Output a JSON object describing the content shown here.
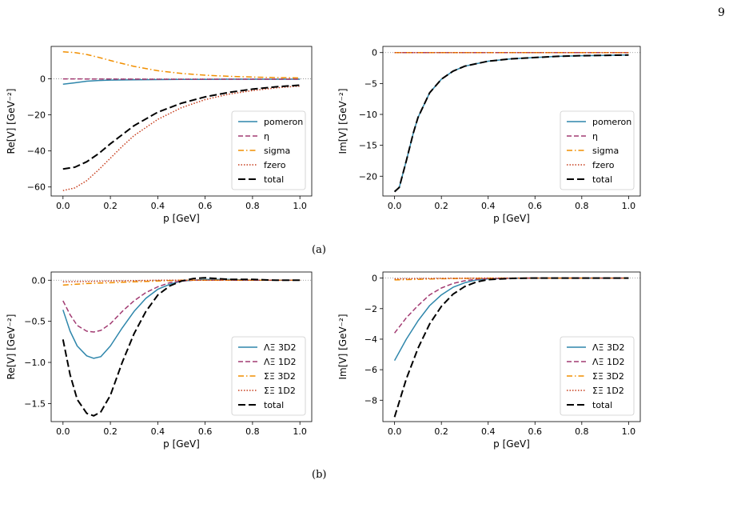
{
  "page": {
    "number": "9"
  },
  "captions": {
    "a": "(a)",
    "b": "(b)"
  },
  "colors": {
    "blue": "#2E86AB",
    "magenta": "#A23B72",
    "orange": "#F18F01",
    "red": "#C73E1D",
    "black": "#000000"
  },
  "chart_data": [
    {
      "id": "a-re",
      "type": "line",
      "xlabel": "p [GeV]",
      "ylabel": "Re[V] [GeV⁻²]",
      "xlim": [
        -0.05,
        1.05
      ],
      "ylim": [
        -65,
        18
      ],
      "xticks": [
        0.0,
        0.2,
        0.4,
        0.6,
        0.8,
        1.0
      ],
      "xtick_labels": [
        "0.0",
        "0.2",
        "0.4",
        "0.6",
        "0.8",
        "1.0"
      ],
      "yticks": [
        0,
        -20,
        -40,
        -60
      ],
      "ytick_labels": [
        "0",
        "−20",
        "−40",
        "−60"
      ],
      "zero_line": true,
      "legend_position": "lower-right",
      "series": [
        {
          "name": "pomeron",
          "style": "solid",
          "color": "#2E86AB",
          "x": [
            0.0,
            0.05,
            0.1,
            0.15,
            0.2,
            0.3,
            0.4,
            0.5,
            0.6,
            0.7,
            0.8,
            0.9,
            1.0
          ],
          "y": [
            -3.0,
            -2.2,
            -1.3,
            -0.9,
            -0.7,
            -0.5,
            -0.4,
            -0.3,
            -0.3,
            -0.2,
            -0.2,
            -0.2,
            -0.2
          ]
        },
        {
          "name": "η",
          "style": "dashed",
          "color": "#A23B72",
          "x": [
            0.0,
            0.2,
            0.4,
            0.6,
            0.8,
            1.0
          ],
          "y": [
            0.0,
            -0.1,
            -0.2,
            -0.2,
            -0.2,
            -0.2
          ]
        },
        {
          "name": "sigma",
          "style": "dashdot",
          "color": "#F18F01",
          "x": [
            0.0,
            0.05,
            0.1,
            0.15,
            0.2,
            0.25,
            0.3,
            0.4,
            0.5,
            0.6,
            0.7,
            0.8,
            0.9,
            1.0
          ],
          "y": [
            15.0,
            14.6,
            13.5,
            11.9,
            10.2,
            8.5,
            6.9,
            4.5,
            3.0,
            2.0,
            1.4,
            1.0,
            0.7,
            0.5
          ]
        },
        {
          "name": "fzero",
          "style": "dotted",
          "color": "#C73E1D",
          "x": [
            0.0,
            0.05,
            0.1,
            0.15,
            0.2,
            0.25,
            0.3,
            0.4,
            0.5,
            0.6,
            0.7,
            0.8,
            0.9,
            1.0
          ],
          "y": [
            -62.0,
            -60.5,
            -56.5,
            -50.5,
            -44.0,
            -37.5,
            -31.5,
            -22.5,
            -16.0,
            -11.5,
            -8.5,
            -6.5,
            -5.0,
            -4.0
          ]
        },
        {
          "name": "total",
          "style": "longdash",
          "color": "#000000",
          "x": [
            0.0,
            0.05,
            0.1,
            0.15,
            0.2,
            0.25,
            0.3,
            0.4,
            0.5,
            0.6,
            0.7,
            0.8,
            0.9,
            1.0
          ],
          "y": [
            -50.0,
            -49.0,
            -46.0,
            -41.5,
            -36.0,
            -31.0,
            -26.0,
            -18.5,
            -13.5,
            -10.0,
            -7.5,
            -5.7,
            -4.4,
            -3.5
          ]
        }
      ]
    },
    {
      "id": "a-im",
      "type": "line",
      "xlabel": "p [GeV]",
      "ylabel": "Im[V] [GeV⁻²]",
      "xlim": [
        -0.05,
        1.05
      ],
      "ylim": [
        -23.2,
        1.0
      ],
      "xticks": [
        0.0,
        0.2,
        0.4,
        0.6,
        0.8,
        1.0
      ],
      "xtick_labels": [
        "0.0",
        "0.2",
        "0.4",
        "0.6",
        "0.8",
        "1.0"
      ],
      "yticks": [
        0,
        -5,
        -10,
        -15,
        -20
      ],
      "ytick_labels": [
        "0",
        "−5",
        "−10",
        "−15",
        "−20"
      ],
      "zero_line": true,
      "legend_position": "lower-right",
      "series": [
        {
          "name": "pomeron",
          "style": "solid",
          "color": "#2E86AB",
          "x": [
            0.0,
            0.02,
            0.05,
            0.08,
            0.1,
            0.15,
            0.2,
            0.25,
            0.3,
            0.4,
            0.5,
            0.6,
            0.7,
            0.8,
            0.9,
            1.0
          ],
          "y": [
            -22.5,
            -21.8,
            -17.5,
            -13.0,
            -10.5,
            -6.5,
            -4.3,
            -3.0,
            -2.2,
            -1.4,
            -1.0,
            -0.8,
            -0.6,
            -0.5,
            -0.45,
            -0.4
          ]
        },
        {
          "name": "η",
          "style": "dashed",
          "color": "#A23B72",
          "x": [
            0.0,
            0.5,
            1.0
          ],
          "y": [
            0.0,
            0.0,
            0.0
          ]
        },
        {
          "name": "sigma",
          "style": "dashdot",
          "color": "#F18F01",
          "x": [
            0.0,
            0.5,
            1.0
          ],
          "y": [
            0.0,
            0.0,
            0.0
          ]
        },
        {
          "name": "fzero",
          "style": "dotted",
          "color": "#C73E1D",
          "x": [
            0.0,
            0.5,
            1.0
          ],
          "y": [
            0.0,
            0.0,
            0.0
          ]
        },
        {
          "name": "total",
          "style": "longdash",
          "color": "#000000",
          "x": [
            0.0,
            0.02,
            0.05,
            0.08,
            0.1,
            0.15,
            0.2,
            0.25,
            0.3,
            0.4,
            0.5,
            0.6,
            0.7,
            0.8,
            0.9,
            1.0
          ],
          "y": [
            -22.5,
            -21.8,
            -17.5,
            -13.0,
            -10.5,
            -6.5,
            -4.3,
            -3.0,
            -2.2,
            -1.4,
            -1.0,
            -0.8,
            -0.6,
            -0.5,
            -0.45,
            -0.4
          ]
        }
      ]
    },
    {
      "id": "b-re",
      "type": "line",
      "xlabel": "p [GeV]",
      "ylabel": "Re[V] [GeV⁻²]",
      "xlim": [
        -0.05,
        1.05
      ],
      "ylim": [
        -1.72,
        0.1
      ],
      "xticks": [
        0.0,
        0.2,
        0.4,
        0.6,
        0.8,
        1.0
      ],
      "xtick_labels": [
        "0.0",
        "0.2",
        "0.4",
        "0.6",
        "0.8",
        "1.0"
      ],
      "yticks": [
        0.0,
        -0.5,
        -1.0,
        -1.5
      ],
      "ytick_labels": [
        "0.0",
        "−0.5",
        "−1.0",
        "−1.5"
      ],
      "zero_line": true,
      "legend_position": "lower-right",
      "series": [
        {
          "name": "ΛΞ 3D2",
          "style": "solid",
          "color": "#2E86AB",
          "x": [
            0.0,
            0.03,
            0.06,
            0.1,
            0.13,
            0.16,
            0.2,
            0.25,
            0.3,
            0.35,
            0.4,
            0.45,
            0.5,
            0.55,
            0.6,
            0.7,
            0.8,
            0.9,
            1.0
          ],
          "y": [
            -0.36,
            -0.62,
            -0.8,
            -0.92,
            -0.95,
            -0.93,
            -0.8,
            -0.58,
            -0.38,
            -0.22,
            -0.11,
            -0.05,
            -0.01,
            0.0,
            0.01,
            0.01,
            0.0,
            0.0,
            0.0
          ]
        },
        {
          "name": "ΛΞ 1D2",
          "style": "dashed",
          "color": "#A23B72",
          "x": [
            0.0,
            0.03,
            0.06,
            0.1,
            0.13,
            0.16,
            0.2,
            0.25,
            0.3,
            0.35,
            0.4,
            0.45,
            0.5,
            0.55,
            0.6,
            0.7,
            0.8,
            0.9,
            1.0
          ],
          "y": [
            -0.25,
            -0.42,
            -0.55,
            -0.62,
            -0.63,
            -0.61,
            -0.53,
            -0.38,
            -0.25,
            -0.15,
            -0.08,
            -0.03,
            -0.01,
            0.0,
            0.0,
            0.0,
            0.0,
            0.0,
            0.0
          ]
        },
        {
          "name": "ΣΞ 3D2",
          "style": "dashdot",
          "color": "#F18F01",
          "x": [
            0.0,
            0.1,
            0.2,
            0.3,
            0.4,
            0.5,
            0.6,
            0.7,
            0.8,
            0.9,
            1.0
          ],
          "y": [
            -0.06,
            -0.04,
            -0.03,
            -0.02,
            -0.01,
            0.0,
            0.0,
            0.0,
            0.0,
            0.0,
            0.0
          ]
        },
        {
          "name": "ΣΞ 1D2",
          "style": "dotted",
          "color": "#C73E1D",
          "x": [
            0.0,
            0.1,
            0.2,
            0.3,
            0.4,
            0.5,
            0.6,
            0.7,
            0.8,
            0.9,
            1.0
          ],
          "y": [
            -0.02,
            -0.015,
            -0.01,
            -0.005,
            0.0,
            0.0,
            0.0,
            0.0,
            0.0,
            0.0,
            0.0
          ]
        },
        {
          "name": "total",
          "style": "longdash",
          "color": "#000000",
          "x": [
            0.0,
            0.03,
            0.06,
            0.1,
            0.13,
            0.16,
            0.2,
            0.25,
            0.3,
            0.35,
            0.4,
            0.45,
            0.5,
            0.55,
            0.6,
            0.65,
            0.7,
            0.8,
            0.9,
            1.0
          ],
          "y": [
            -0.72,
            -1.15,
            -1.45,
            -1.62,
            -1.65,
            -1.6,
            -1.4,
            -1.0,
            -0.65,
            -0.38,
            -0.18,
            -0.07,
            -0.01,
            0.02,
            0.03,
            0.02,
            0.01,
            0.01,
            0.0,
            0.0
          ]
        }
      ]
    },
    {
      "id": "b-im",
      "type": "line",
      "xlabel": "p [GeV]",
      "ylabel": "Im[V] [GeV⁻²]",
      "xlim": [
        -0.05,
        1.05
      ],
      "ylim": [
        -9.4,
        0.4
      ],
      "xticks": [
        0.0,
        0.2,
        0.4,
        0.6,
        0.8,
        1.0
      ],
      "xtick_labels": [
        "0.0",
        "0.2",
        "0.4",
        "0.6",
        "0.8",
        "1.0"
      ],
      "yticks": [
        0,
        -2,
        -4,
        -6,
        -8
      ],
      "ytick_labels": [
        "0",
        "−2",
        "−4",
        "−6",
        "−8"
      ],
      "zero_line": true,
      "legend_position": "lower-right",
      "series": [
        {
          "name": "ΛΞ 3D2",
          "style": "solid",
          "color": "#2E86AB",
          "x": [
            0.0,
            0.05,
            0.1,
            0.15,
            0.2,
            0.25,
            0.3,
            0.35,
            0.4,
            0.5,
            0.6,
            0.7,
            0.8,
            0.9,
            1.0
          ],
          "y": [
            -5.4,
            -4.0,
            -2.8,
            -1.8,
            -1.1,
            -0.6,
            -0.3,
            -0.12,
            -0.05,
            -0.01,
            0.0,
            0.0,
            0.0,
            0.0,
            0.0
          ]
        },
        {
          "name": "ΛΞ 1D2",
          "style": "dashed",
          "color": "#A23B72",
          "x": [
            0.0,
            0.05,
            0.1,
            0.15,
            0.2,
            0.25,
            0.3,
            0.35,
            0.4,
            0.5,
            0.6,
            0.7,
            0.8,
            0.9,
            1.0
          ],
          "y": [
            -3.6,
            -2.6,
            -1.8,
            -1.1,
            -0.65,
            -0.35,
            -0.17,
            -0.07,
            -0.03,
            -0.01,
            0.0,
            0.0,
            0.0,
            0.0,
            0.0
          ]
        },
        {
          "name": "ΣΞ 3D2",
          "style": "dashdot",
          "color": "#F18F01",
          "x": [
            0.0,
            0.1,
            0.2,
            0.3,
            0.4,
            0.5,
            0.6,
            0.7,
            0.8,
            0.9,
            1.0
          ],
          "y": [
            -0.12,
            -0.08,
            -0.04,
            -0.02,
            -0.01,
            0.0,
            0.0,
            0.0,
            0.0,
            0.0,
            0.0
          ]
        },
        {
          "name": "ΣΞ 1D2",
          "style": "dotted",
          "color": "#C73E1D",
          "x": [
            0.0,
            0.1,
            0.2,
            0.3,
            0.4,
            0.5,
            0.6,
            0.7,
            0.8,
            0.9,
            1.0
          ],
          "y": [
            -0.05,
            -0.03,
            -0.02,
            -0.01,
            0.0,
            0.0,
            0.0,
            0.0,
            0.0,
            0.0,
            0.0
          ]
        },
        {
          "name": "total",
          "style": "longdash",
          "color": "#000000",
          "x": [
            0.0,
            0.05,
            0.1,
            0.15,
            0.2,
            0.25,
            0.3,
            0.35,
            0.4,
            0.5,
            0.6,
            0.7,
            0.8,
            0.9,
            1.0
          ],
          "y": [
            -9.1,
            -6.6,
            -4.6,
            -3.0,
            -1.85,
            -1.05,
            -0.55,
            -0.25,
            -0.1,
            -0.02,
            0.0,
            0.0,
            0.0,
            0.0,
            0.0
          ]
        }
      ]
    }
  ]
}
